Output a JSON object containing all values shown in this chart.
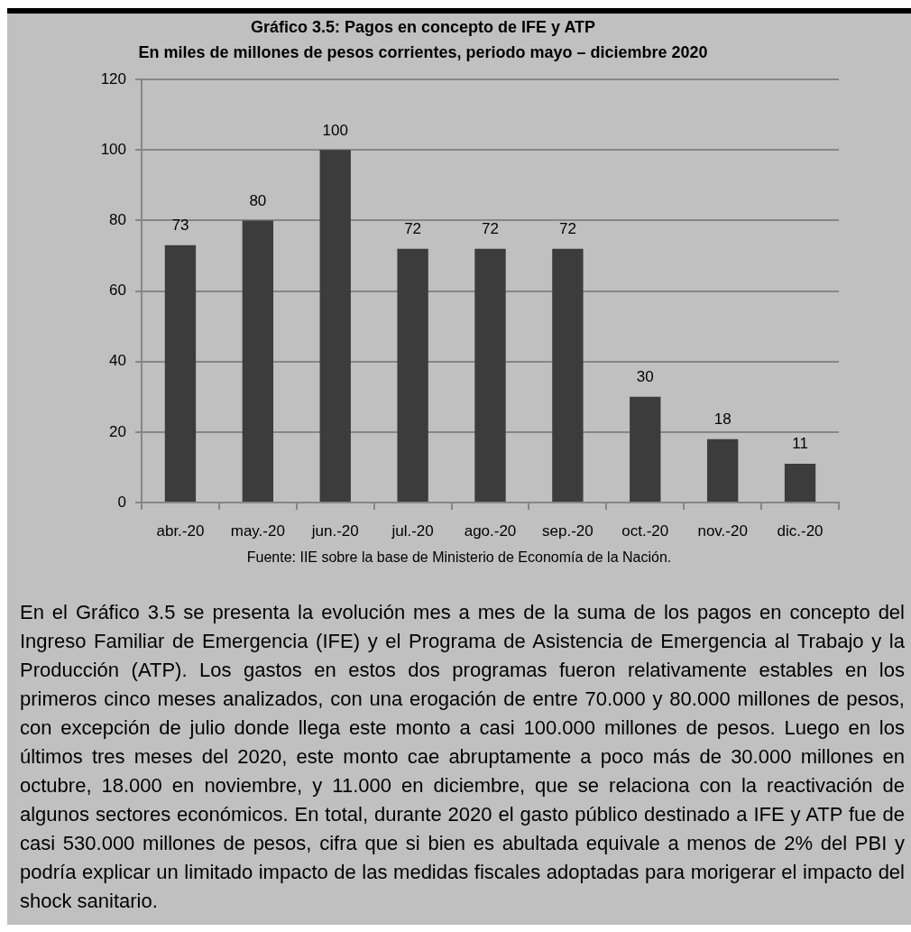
{
  "chart_data": {
    "type": "bar",
    "title": "Gráfico 3.5: Pagos en concepto de IFE y ATP",
    "subtitle": "En miles de millones de pesos corrientes, periodo mayo – diciembre 2020",
    "categories": [
      "abr.-20",
      "may.-20",
      "jun.-20",
      "jul.-20",
      "ago.-20",
      "sep.-20",
      "oct.-20",
      "nov.-20",
      "dic.-20"
    ],
    "values": [
      73,
      80,
      100,
      72,
      72,
      72,
      30,
      18,
      11
    ],
    "color": "#3c3c3c",
    "ylim": [
      0,
      120
    ],
    "yticks": [
      0,
      20,
      40,
      60,
      80,
      100,
      120
    ],
    "grid": "y",
    "data_labels": true,
    "annotations": [
      "Fuente: IIE sobre la base de Ministerio de Economía de la Nación.",
      "En el Gráfico 3.5 se presenta la evolución mes a mes de la suma de los pagos en concepto del Ingreso Familiar de Emergencia (IFE) y el Programa de Asistencia de Emergencia al Trabajo y la Producción (ATP). Los gastos en estos dos programas fueron relativamente estables en los primeros cinco meses analizados, con una erogación de entre 70.000 y 80.000 millones de pesos, con excepción de julio donde llega este monto a casi 100.000 millones de pesos. Luego en los últimos tres meses del 2020, este monto cae abruptamente a poco más de 30.000 millones en octubre, 18.000 en noviembre, y 11.000 en diciembre, que se relaciona con la reactivación de algunos sectores económicos. En total, durante 2020 el gasto público destinado a IFE y ATP fue de casi 530.000 millones de pesos, cifra que si bien es abultada equivale a menos de 2% del PBI y podría explicar un limitado impacto de las medidas fiscales adoptadas para morigerar el impacto del shock sanitario."
    ]
  }
}
